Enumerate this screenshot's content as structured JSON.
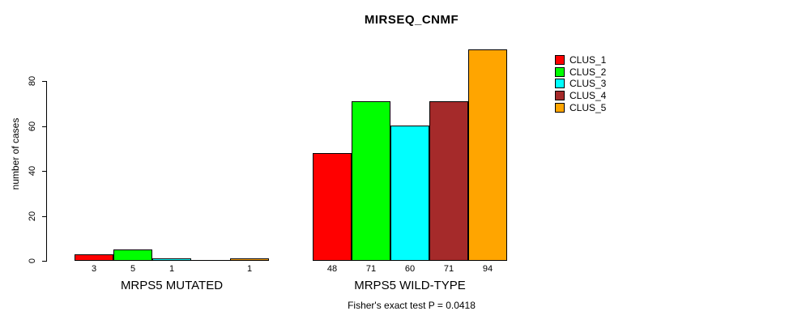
{
  "chart_data": {
    "type": "bar",
    "title": "MIRSEQ_CNMF",
    "ylabel": "number of cases",
    "xlabel": "",
    "yticks": [
      0,
      20,
      40,
      60,
      80
    ],
    "ylim": [
      0,
      94
    ],
    "grid": false,
    "legend_position": "right",
    "legend": [
      "CLUS_1",
      "CLUS_2",
      "CLUS_3",
      "CLUS_4",
      "CLUS_5"
    ],
    "colors": [
      "#FF0000",
      "#00FF00",
      "#00FFFF",
      "#A52A2A",
      "#FFA500"
    ],
    "categories": [
      "MRPS5 MUTATED",
      "MRPS5 WILD-TYPE"
    ],
    "series": [
      {
        "name": "CLUS_1",
        "values": [
          3,
          48
        ]
      },
      {
        "name": "CLUS_2",
        "values": [
          5,
          71
        ]
      },
      {
        "name": "CLUS_3",
        "values": [
          1,
          60
        ]
      },
      {
        "name": "CLUS_4",
        "values": [
          0,
          71
        ]
      },
      {
        "name": "CLUS_5",
        "values": [
          1,
          94
        ]
      }
    ],
    "groups": [
      {
        "label": "MRPS5 MUTATED",
        "values": [
          3,
          5,
          1,
          0,
          1
        ],
        "value_labels": [
          "3",
          "5",
          "1",
          "",
          "1"
        ]
      },
      {
        "label": "MRPS5 WILD-TYPE",
        "values": [
          48,
          71,
          60,
          71,
          94
        ],
        "value_labels": [
          "48",
          "71",
          "60",
          "71",
          "94"
        ]
      }
    ],
    "caption": "Fisher's exact test P = 0.0418"
  }
}
